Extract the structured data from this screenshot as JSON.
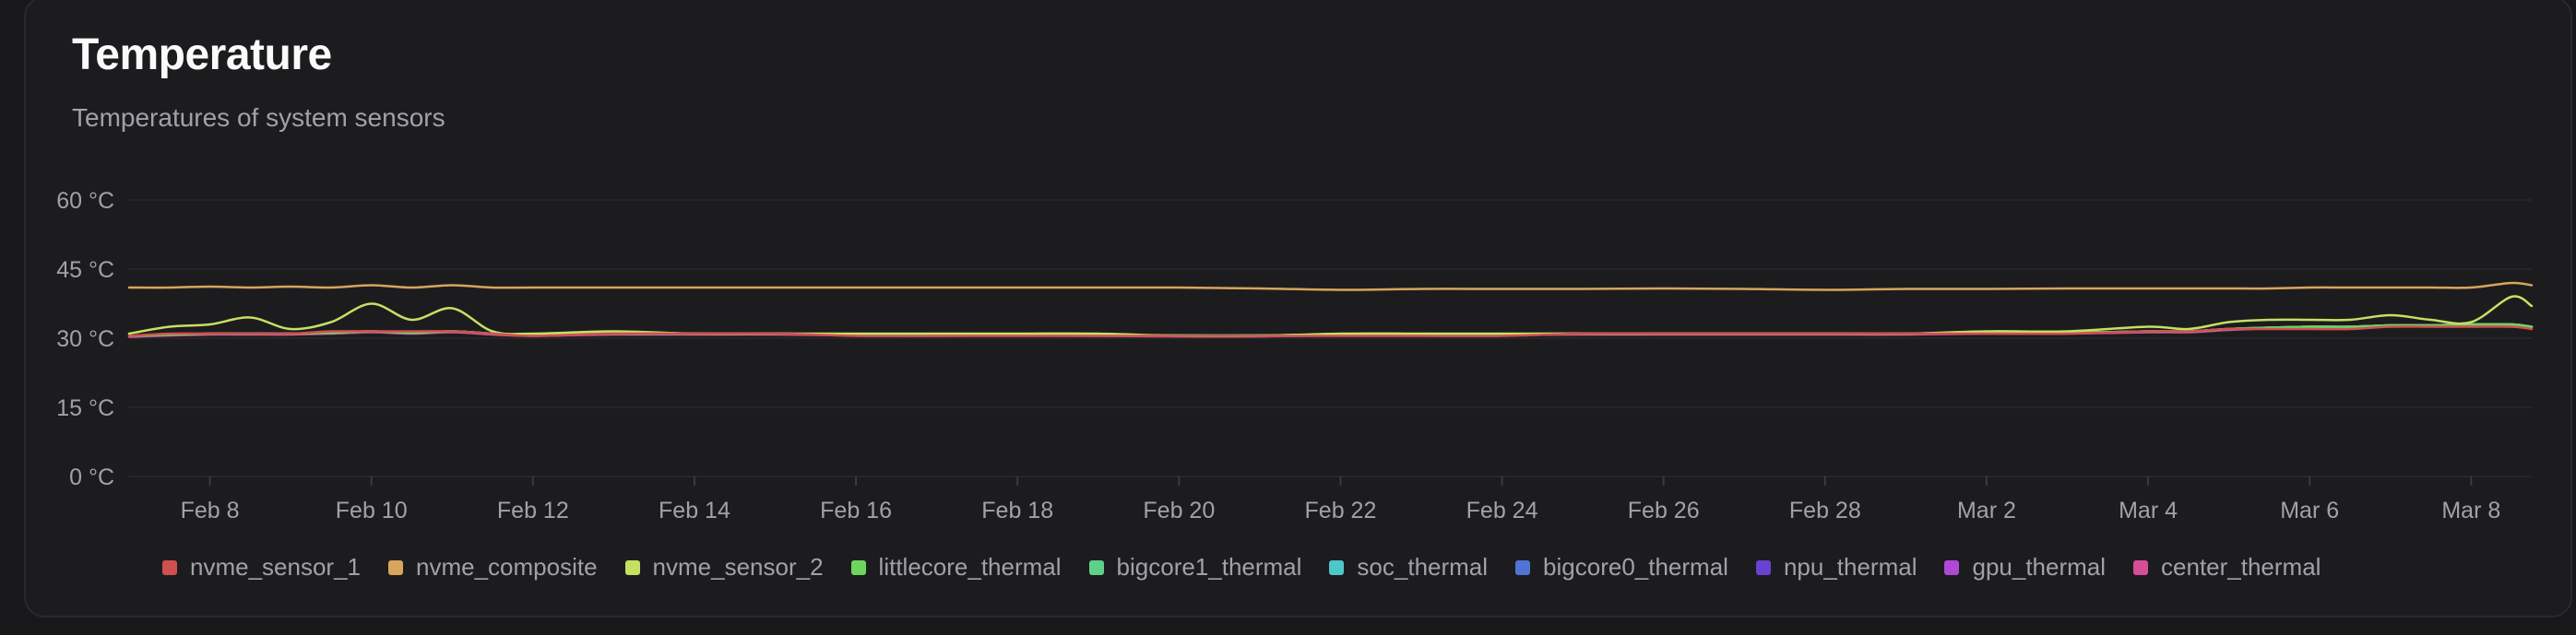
{
  "card": {
    "title": "Temperature",
    "subtitle": "Temperatures of system sensors"
  },
  "chart_data": {
    "type": "line",
    "title": "Temperature",
    "subtitle": "Temperatures of system sensors",
    "xlabel": "",
    "ylabel": "",
    "ylim": [
      0,
      60
    ],
    "yticks": [
      "0 °C",
      "15 °C",
      "30 °C",
      "45 °C",
      "60 °C"
    ],
    "ytick_values": [
      0,
      15,
      30,
      45,
      60
    ],
    "xlim": [
      "2026-02-07",
      "2026-03-08T18:00"
    ],
    "xticks": [
      "Feb 8",
      "Feb 10",
      "Feb 12",
      "Feb 14",
      "Feb 16",
      "Feb 18",
      "Feb 20",
      "Feb 22",
      "Feb 24",
      "Feb 26",
      "Feb 28",
      "Mar 2",
      "Mar 4",
      "Mar 6",
      "Mar 8"
    ],
    "xtick_dates": [
      "2026-02-08",
      "2026-02-10",
      "2026-02-12",
      "2026-02-14",
      "2026-02-16",
      "2026-02-18",
      "2026-02-20",
      "2026-02-22",
      "2026-02-24",
      "2026-02-26",
      "2026-02-28",
      "2026-03-02",
      "2026-03-04",
      "2026-03-06",
      "2026-03-08"
    ],
    "grid": "horizontal",
    "legend_position": "bottom",
    "x": [
      "2026-02-07",
      "2026-02-07T12:00",
      "2026-02-08",
      "2026-02-08T12:00",
      "2026-02-09",
      "2026-02-09T12:00",
      "2026-02-10",
      "2026-02-10T12:00",
      "2026-02-11",
      "2026-02-11T12:00",
      "2026-02-12",
      "2026-02-13",
      "2026-02-14",
      "2026-02-15",
      "2026-02-16",
      "2026-02-17",
      "2026-02-18",
      "2026-02-19",
      "2026-02-20",
      "2026-02-21",
      "2026-02-22",
      "2026-02-23",
      "2026-02-24",
      "2026-02-25",
      "2026-02-26",
      "2026-02-27",
      "2026-02-28",
      "2026-03-01",
      "2026-03-02",
      "2026-03-03",
      "2026-03-04",
      "2026-03-04T12:00",
      "2026-03-05",
      "2026-03-05T12:00",
      "2026-03-06",
      "2026-03-06T12:00",
      "2026-03-07",
      "2026-03-07T12:00",
      "2026-03-08",
      "2026-03-08T12:00",
      "2026-03-08T18:00"
    ],
    "series": [
      {
        "name": "nvme_sensor_1",
        "color": "#d14f4f",
        "values": [
          30.5,
          31,
          31,
          31,
          31,
          31.5,
          31.5,
          31.5,
          31.5,
          31,
          30.5,
          31,
          31,
          31,
          30.5,
          30.5,
          30.5,
          30.5,
          30.5,
          30.5,
          30.5,
          30.5,
          30.5,
          31,
          31,
          31,
          31,
          31,
          31,
          31,
          31.5,
          31.5,
          32,
          32,
          32,
          32,
          32.5,
          32.5,
          32.5,
          32.5,
          32
        ]
      },
      {
        "name": "nvme_composite",
        "color": "#d8a55a",
        "values": [
          41,
          41,
          41.2,
          41,
          41.2,
          41,
          41.5,
          41,
          41.5,
          41,
          41,
          41,
          41,
          41,
          41,
          41,
          41,
          41,
          41,
          40.8,
          40.5,
          40.7,
          40.7,
          40.7,
          40.8,
          40.7,
          40.5,
          40.7,
          40.7,
          40.8,
          40.8,
          40.8,
          40.8,
          40.8,
          41,
          41,
          41,
          41,
          41,
          42,
          41.5
        ]
      },
      {
        "name": "nvme_sensor_2",
        "color": "#c5e063",
        "values": [
          31,
          32.5,
          33,
          34.5,
          32,
          33.5,
          37.5,
          34,
          36.5,
          31.5,
          31,
          31.5,
          31,
          31,
          31,
          31,
          31,
          31,
          30.5,
          30.5,
          31,
          31,
          31,
          31,
          31,
          31,
          31,
          31,
          31.5,
          31.5,
          32.5,
          32,
          33.5,
          34,
          34,
          34,
          35,
          34,
          33.5,
          39,
          37
        ]
      },
      {
        "name": "littlecore_thermal",
        "color": "#6ed35f",
        "values": [
          30.5,
          30.8,
          31,
          31,
          31,
          31.2,
          31.5,
          31.2,
          31.5,
          31,
          30.7,
          31,
          31,
          31,
          30.8,
          30.7,
          30.8,
          30.7,
          30.6,
          30.6,
          30.8,
          30.8,
          30.9,
          31,
          31,
          31,
          31,
          31,
          31.2,
          31.2,
          31.5,
          31.5,
          32,
          32.3,
          32.5,
          32.5,
          32.8,
          32.8,
          33,
          33,
          32.5
        ]
      },
      {
        "name": "bigcore1_thermal",
        "color": "#5ed08a",
        "values": [
          30.5,
          30.8,
          31,
          31,
          31,
          31.2,
          31.5,
          31.2,
          31.5,
          31,
          30.7,
          31,
          31,
          31,
          30.8,
          30.7,
          30.8,
          30.7,
          30.6,
          30.6,
          30.8,
          30.8,
          30.9,
          31,
          31,
          31,
          31,
          31,
          31.2,
          31.2,
          31.5,
          31.5,
          32,
          32.3,
          32.5,
          32.5,
          32.8,
          32.8,
          33,
          33,
          32.5
        ]
      },
      {
        "name": "soc_thermal",
        "color": "#4fc6c8",
        "values": [
          30.5,
          30.8,
          31,
          31,
          31,
          31.2,
          31.5,
          31.2,
          31.5,
          31,
          30.7,
          31,
          31,
          31,
          30.8,
          30.7,
          30.8,
          30.7,
          30.6,
          30.6,
          30.8,
          30.8,
          30.9,
          31,
          31,
          31,
          31,
          31,
          31.2,
          31.2,
          31.5,
          31.5,
          32,
          32.3,
          32.5,
          32.5,
          32.8,
          32.8,
          33,
          33,
          32.5
        ]
      },
      {
        "name": "bigcore0_thermal",
        "color": "#4f74d4",
        "values": [
          30.5,
          30.8,
          31,
          31,
          31,
          31.2,
          31.5,
          31.2,
          31.5,
          31,
          30.7,
          31,
          31,
          31,
          30.8,
          30.7,
          30.8,
          30.7,
          30.6,
          30.6,
          30.8,
          30.8,
          30.9,
          31,
          31,
          31,
          31,
          31,
          31.2,
          31.2,
          31.5,
          31.5,
          32,
          32.3,
          32.5,
          32.5,
          32.8,
          32.8,
          33,
          33,
          32.5
        ]
      },
      {
        "name": "npu_thermal",
        "color": "#6a42d1",
        "values": [
          30.5,
          30.8,
          31,
          31,
          31,
          31.2,
          31.5,
          31.2,
          31.5,
          31,
          30.7,
          31,
          31,
          31,
          30.8,
          30.7,
          30.8,
          30.7,
          30.6,
          30.6,
          30.8,
          30.8,
          30.9,
          31,
          31,
          31,
          31,
          31,
          31.2,
          31.2,
          31.5,
          31.5,
          32,
          32.3,
          32.5,
          32.5,
          32.8,
          32.8,
          33,
          33,
          32.5
        ]
      },
      {
        "name": "gpu_thermal",
        "color": "#b048d6",
        "values": [
          30.5,
          30.8,
          31,
          31,
          31,
          31.2,
          31.5,
          31.2,
          31.5,
          31,
          30.7,
          31,
          31,
          31,
          30.8,
          30.7,
          30.8,
          30.7,
          30.6,
          30.6,
          30.8,
          30.8,
          30.9,
          31,
          31,
          31,
          31,
          31,
          31.2,
          31.2,
          31.5,
          31.5,
          32,
          32.3,
          32.5,
          32.5,
          32.8,
          32.8,
          33,
          33,
          32.5
        ]
      },
      {
        "name": "center_thermal",
        "color": "#d44f98",
        "values": [
          30.3,
          30.6,
          30.8,
          30.8,
          30.8,
          31,
          31.3,
          31,
          31.3,
          30.8,
          30.5,
          30.8,
          30.8,
          30.8,
          30.6,
          30.5,
          30.6,
          30.5,
          30.4,
          30.4,
          30.6,
          30.6,
          30.7,
          30.8,
          30.8,
          30.8,
          30.8,
          30.8,
          31,
          31,
          31.3,
          31.3,
          31.8,
          32.1,
          32.3,
          32.3,
          32.6,
          32.6,
          32.8,
          32.8,
          32.3
        ]
      }
    ]
  }
}
